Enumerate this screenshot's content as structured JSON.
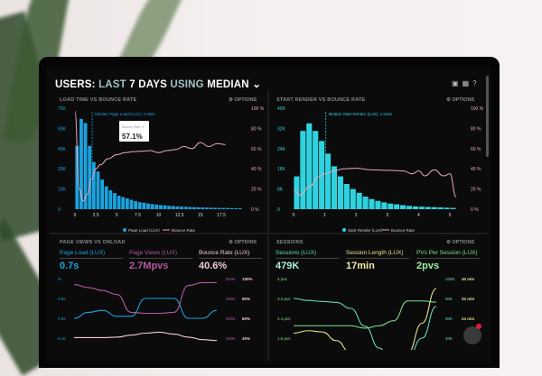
{
  "header": {
    "title_prefix": "USERS:",
    "title_mid1": "LAST",
    "title_days": "7 DAYS",
    "title_mid2": "USING",
    "title_stat": "MEDIAN",
    "chevron": "chevron-down-icon",
    "icons": [
      "monitor-icon",
      "image-icon",
      "help-icon"
    ]
  },
  "colors": {
    "blue": "#1aa3de",
    "cyan": "#2fd3e0",
    "pink": "#e8a9bf",
    "magenta": "#b2589d",
    "teal": "#63d9b6",
    "yellow": "#e9e08a",
    "green": "#7ee08c"
  },
  "options_label": "OPTIONS",
  "chart_data": [
    {
      "type": "bar",
      "title": "LOAD TIME VS BOUNCE RATE",
      "annotation": "Median Page Load (LUX): 2.056s",
      "median_x": 2.056,
      "tooltip": {
        "label": "Bounce Rate %",
        "value": "57.1%"
      },
      "x_ticks": [
        "0",
        "2.5",
        "5",
        "7.5",
        "10",
        "12.5",
        "15",
        "17.5"
      ],
      "x_tick_values": [
        0,
        2.5,
        5,
        7.5,
        10,
        12.5,
        15,
        17.5
      ],
      "y_ticks": [
        "0",
        "15K",
        "30K",
        "45K",
        "60K",
        "75K"
      ],
      "ylim": [
        0,
        75000
      ],
      "y2_ticks": [
        "0 %",
        "20 %",
        "40 %",
        "60 %",
        "80 %",
        "100 %"
      ],
      "y2lim": [
        0,
        100
      ],
      "bin_width": 0.5,
      "series": [
        {
          "name": "Page Load (LUX)",
          "type": "bar",
          "values": [
            47000,
            67000,
            64000,
            47000,
            35000,
            28000,
            22000,
            17000,
            14000,
            12000,
            10000,
            9000,
            8000,
            7000,
            6000,
            5200,
            4800,
            4200,
            3800,
            3400,
            3000,
            2800,
            2500,
            2300,
            2100,
            1900,
            1800,
            1600,
            1500,
            1400,
            1300,
            1200,
            1100,
            1000,
            1000,
            900,
            900,
            800,
            800,
            700
          ]
        },
        {
          "name": "Bounce Rate",
          "type": "line",
          "x": [
            0,
            0.5,
            1,
            1.5,
            2,
            2.5,
            3,
            4,
            5,
            6,
            7,
            8,
            9,
            10,
            11,
            12,
            13,
            14,
            15,
            16,
            17,
            18
          ],
          "values": [
            97,
            20,
            8,
            15,
            30,
            40,
            44,
            50,
            54,
            56,
            57,
            57.5,
            58,
            56,
            58,
            59,
            62,
            60,
            66,
            62,
            65,
            64
          ]
        }
      ]
    },
    {
      "type": "bar",
      "title": "START RENDER VS BOUNCE RATE",
      "annotation": "Median Start Render (LUX): 1.031s",
      "median_x": 1.031,
      "x_ticks": [
        "0",
        "1",
        "2",
        "3",
        "4",
        "5"
      ],
      "x_tick_values": [
        0,
        1,
        2,
        3,
        4,
        5
      ],
      "y_ticks": [
        "0",
        "8K",
        "16K",
        "24K",
        "32K",
        "40K"
      ],
      "ylim": [
        0,
        40000
      ],
      "y2_ticks": [
        "0 %",
        "20 %",
        "40 %",
        "60 %",
        "80 %",
        "100 %"
      ],
      "y2lim": [
        0,
        100
      ],
      "bin_width": 0.2,
      "series": [
        {
          "name": "Start Render (LUX)",
          "type": "bar",
          "values": [
            13000,
            31000,
            34000,
            31000,
            27000,
            22000,
            17000,
            13000,
            10000,
            8000,
            6500,
            5000,
            4000,
            3300,
            2700,
            2200,
            1900,
            1600,
            1300,
            1100,
            1000,
            900,
            800,
            700,
            600,
            500
          ]
        },
        {
          "name": "Bounce Rate",
          "type": "line",
          "x": [
            0,
            0.2,
            0.5,
            0.8,
            1,
            1.3,
            1.6,
            2,
            2.5,
            3,
            3.5,
            3.8,
            4,
            4.2,
            4.5,
            4.8,
            5,
            5.2
          ],
          "values": [
            19,
            14,
            22,
            32,
            35,
            38,
            40,
            40.5,
            39,
            38.5,
            38,
            35,
            38,
            33,
            39,
            33,
            35,
            12
          ]
        }
      ]
    },
    {
      "type": "line",
      "title": "PAGE VIEWS VS ONLOAD",
      "metrics": [
        {
          "label": "Page Load (LUX)",
          "value": "0.7s"
        },
        {
          "label": "Page Views (LUX)",
          "value": "2.7Mpvs"
        },
        {
          "label": "Bounce Rate (LUX)",
          "value": "40.6%"
        }
      ],
      "y_ticks": [
        "%",
        "0.8s",
        "0.6s",
        "0.4s"
      ],
      "y2_ticks": [
        "500K",
        "400K",
        "300K",
        "200K"
      ],
      "y3_ticks": [
        "100%",
        "80%",
        "60%",
        "40%"
      ],
      "series": [
        {
          "name": "Page Load (LUX)",
          "axis": "left",
          "ylim": [
            0.4,
            1.0
          ],
          "values": [
            0.6,
            0.66,
            0.68,
            0.62,
            0.62,
            0.8,
            0.8,
            0.8,
            0.6,
            0.6,
            0.68
          ]
        },
        {
          "name": "Page Views (LUX)",
          "axis": "right",
          "ylim": [
            200000,
            500000
          ],
          "values": [
            470000,
            455000,
            440000,
            420000,
            330000,
            325000,
            325000,
            330000,
            465000,
            480000,
            480000
          ]
        },
        {
          "name": "Bounce Rate (LUX)",
          "axis": "right2",
          "ylim": [
            40,
            100
          ],
          "values": [
            40.5,
            40.5,
            40.5,
            41,
            43,
            45,
            46,
            44,
            41,
            38.5,
            37.5
          ]
        }
      ]
    },
    {
      "type": "line",
      "title": "SESSIONS",
      "metrics": [
        {
          "label": "Sessions (LUX)",
          "value": "479K"
        },
        {
          "label": "Session Length (LUX)",
          "value": "17min"
        },
        {
          "label": "PVs Per Session (LUX)",
          "value": "2pvs"
        }
      ],
      "y_ticks": [
        "4 pvs",
        "3.2 pvs",
        "2.4 pvs",
        "1.6 pvs"
      ],
      "y2_ticks": [
        "100K",
        "80K",
        "60K",
        "40K"
      ],
      "y3_ticks": [
        "40 min",
        "32 min",
        "24 min",
        ""
      ],
      "series": [
        {
          "name": "Sessions (LUX)",
          "axis": "right",
          "ylim": [
            40000,
            100000
          ],
          "values": [
            80000,
            78000,
            77000,
            76000,
            70000,
            52000,
            30000,
            10000,
            20000,
            40000,
            72000
          ]
        },
        {
          "name": "Session Length (LUX)",
          "axis": "right2",
          "ylim": [
            16,
            40
          ],
          "values": [
            18,
            19,
            18.5,
            15,
            10,
            5,
            2,
            5,
            10,
            22,
            36
          ]
        },
        {
          "name": "PVs Per Session (LUX)",
          "axis": "left",
          "ylim": [
            1.6,
            4
          ],
          "values": [
            2.1,
            2.1,
            2.1,
            2.1,
            2.1,
            2.0,
            2.1,
            2.3,
            3.1,
            3.1,
            3.05
          ]
        }
      ]
    }
  ],
  "chat": {
    "badge": "1"
  }
}
